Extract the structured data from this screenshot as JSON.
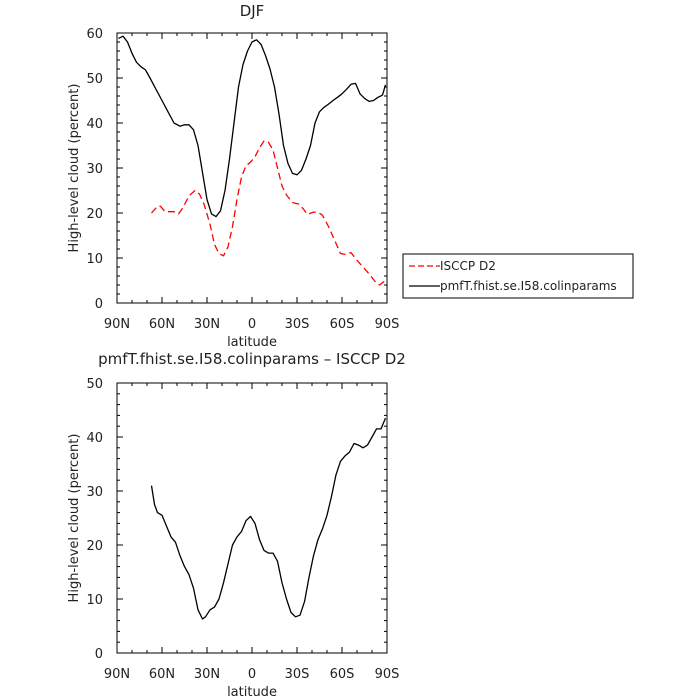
{
  "chart_data": [
    {
      "type": "line",
      "title": "DJF",
      "xlabel": "latitude",
      "ylabel": "High-level cloud (percent)",
      "xlim": [
        90,
        -90
      ],
      "ylim": [
        0,
        60
      ],
      "x_ticks": [
        90,
        60,
        30,
        0,
        -30,
        -60,
        -90
      ],
      "x_tick_labels": [
        "90N",
        "60N",
        "30N",
        "0",
        "30S",
        "60S",
        "90S"
      ],
      "y_ticks": [
        0,
        10,
        20,
        30,
        40,
        50,
        60
      ],
      "y_tick_labels": [
        "0",
        "10",
        "20",
        "30",
        "40",
        "50",
        "60"
      ],
      "legend_position": "right",
      "series": [
        {
          "name": "ISCCP D2",
          "color": "#ff0000",
          "dash": "dashed",
          "x": [
            67,
            63,
            61,
            58,
            55,
            52,
            49,
            46,
            42,
            38,
            35,
            32,
            28,
            25,
            22,
            19,
            16,
            13,
            10,
            7,
            4,
            1,
            -2,
            -5,
            -8,
            -11,
            -14,
            -17,
            -20,
            -23,
            -27,
            -31,
            -34,
            -37,
            -41,
            -44,
            -47,
            -51,
            -55,
            -59,
            -62,
            -66,
            -70,
            -74,
            -78,
            -82,
            -85,
            -89
          ],
          "y": [
            20.0,
            21.5,
            21.5,
            20.3,
            20.3,
            20.3,
            19.8,
            21.2,
            23.8,
            25.0,
            24.2,
            22.0,
            17.5,
            13.0,
            11.0,
            10.5,
            12.5,
            17.0,
            23.0,
            28.0,
            30.5,
            31.3,
            32.5,
            34.5,
            36.0,
            35.7,
            34.0,
            30.0,
            26.0,
            24.0,
            22.3,
            22.0,
            21.0,
            19.7,
            20.2,
            20.2,
            19.5,
            17.0,
            14.0,
            11.0,
            10.8,
            11.2,
            9.5,
            8.0,
            6.5,
            4.8,
            4.0,
            5.0
          ]
        },
        {
          "name": "pmfT.fhist.se.I58.colinparams",
          "color": "#000000",
          "dash": "solid",
          "x": [
            89,
            86,
            83,
            80,
            77,
            74,
            71,
            68,
            64,
            60,
            56,
            52,
            48,
            45,
            42,
            39,
            36,
            33,
            30,
            27,
            24,
            21,
            18,
            15,
            12,
            9,
            6,
            3,
            0,
            -3,
            -6,
            -9,
            -12,
            -15,
            -18,
            -21,
            -24,
            -27,
            -30,
            -33,
            -36,
            -39,
            -42,
            -45,
            -48,
            -51,
            -54,
            -57,
            -60,
            -63,
            -66,
            -69,
            -72,
            -75,
            -78,
            -81,
            -84,
            -87,
            -89
          ],
          "y": [
            58.8,
            59.3,
            58.0,
            55.5,
            53.5,
            52.5,
            51.8,
            50.0,
            47.5,
            45.0,
            42.5,
            40.0,
            39.3,
            39.6,
            39.6,
            38.5,
            35.0,
            29.0,
            23.0,
            19.8,
            19.2,
            20.5,
            25.0,
            32.0,
            40.0,
            48.0,
            53.0,
            56.0,
            58.0,
            58.5,
            57.5,
            55.0,
            52.0,
            48.0,
            42.0,
            35.0,
            31.0,
            28.8,
            28.5,
            29.5,
            32.0,
            35.0,
            40.0,
            42.5,
            43.5,
            44.2,
            45.0,
            45.7,
            46.5,
            47.5,
            48.6,
            48.8,
            46.5,
            45.5,
            44.8,
            45.0,
            45.7,
            46.2,
            48.5
          ]
        }
      ]
    },
    {
      "type": "line",
      "title": "pmfT.fhist.se.I58.colinparams – ISCCP D2",
      "xlabel": "latitude",
      "ylabel": "High-level cloud (percent)",
      "xlim": [
        90,
        -90
      ],
      "ylim": [
        0,
        50
      ],
      "x_ticks": [
        90,
        60,
        30,
        0,
        -30,
        -60,
        -90
      ],
      "x_tick_labels": [
        "90N",
        "60N",
        "30N",
        "0",
        "30S",
        "60S",
        "90S"
      ],
      "y_ticks": [
        0,
        10,
        20,
        30,
        40,
        50
      ],
      "y_tick_labels": [
        "0",
        "10",
        "20",
        "30",
        "40",
        "50"
      ],
      "series": [
        {
          "color": "#000000",
          "dash": "solid",
          "x": [
            67,
            65,
            63,
            60,
            57,
            54,
            51,
            48,
            45,
            42,
            39,
            36,
            33,
            31,
            28,
            25,
            22,
            19,
            16,
            13,
            10,
            7,
            4,
            1,
            -2,
            -5,
            -8,
            -11,
            -14,
            -17,
            -20,
            -23,
            -26,
            -29,
            -32,
            -35,
            -38,
            -41,
            -44,
            -47,
            -50,
            -53,
            -56,
            -59,
            -62,
            -65,
            -68,
            -71,
            -74,
            -77,
            -80,
            -83,
            -86,
            -89
          ],
          "y": [
            31.0,
            27.5,
            26.0,
            25.5,
            23.5,
            21.5,
            20.5,
            18.0,
            16.0,
            14.5,
            12.0,
            8.0,
            6.3,
            6.7,
            8.0,
            8.5,
            10.0,
            13.0,
            16.5,
            20.0,
            21.5,
            22.5,
            24.5,
            25.3,
            24.0,
            21.0,
            19.0,
            18.5,
            18.5,
            17.0,
            13.0,
            10.0,
            7.5,
            6.7,
            7.0,
            9.5,
            14.0,
            18.0,
            21.0,
            23.0,
            25.5,
            29.0,
            33.0,
            35.5,
            36.5,
            37.2,
            38.8,
            38.5,
            38.0,
            38.5,
            40.0,
            41.5,
            41.5,
            43.5
          ]
        }
      ]
    }
  ]
}
